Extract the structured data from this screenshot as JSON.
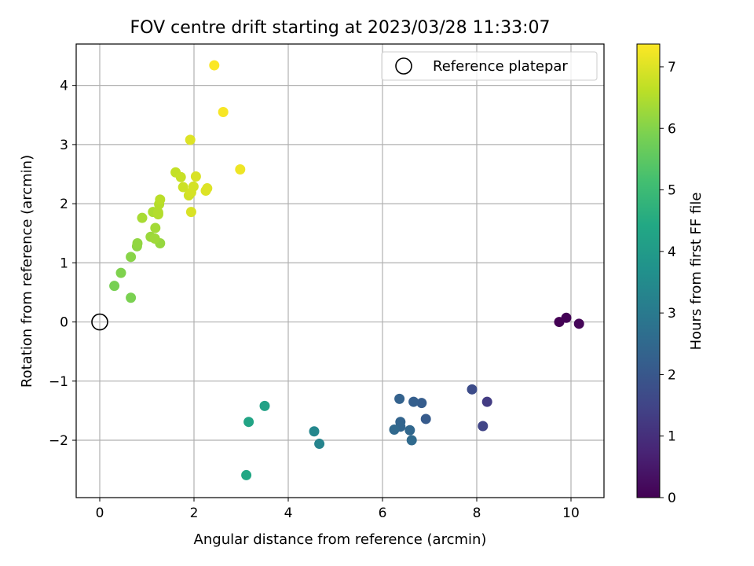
{
  "chart_data": {
    "type": "scatter",
    "title": "FOV centre drift starting at 2023/03/28 11:33:07",
    "xlabel": "Angular distance from reference (arcmin)",
    "ylabel": "Rotation from reference (arcmin)",
    "xlim": [
      -0.5,
      10.7
    ],
    "ylim": [
      -2.97,
      4.7
    ],
    "xticks": [
      0,
      2,
      4,
      6,
      8,
      10
    ],
    "xtick_labels": [
      "0",
      "2",
      "4",
      "6",
      "8",
      "10"
    ],
    "yticks": [
      -2,
      -1,
      0,
      1,
      2,
      3,
      4
    ],
    "ytick_labels": [
      "−2",
      "−1",
      "0",
      "1",
      "2",
      "3",
      "4"
    ],
    "grid": true,
    "legend": {
      "label": "Reference platepar",
      "placement": "top-right"
    },
    "reference_point": {
      "x": 0,
      "y": 0
    },
    "colorbar": {
      "label": "Hours from first FF file",
      "colormap": "viridis",
      "range": [
        0,
        7.37
      ],
      "ticks": [
        0,
        1,
        2,
        3,
        4,
        5,
        6,
        7
      ],
      "tick_labels": [
        "0",
        "1",
        "2",
        "3",
        "4",
        "5",
        "6",
        "7"
      ]
    },
    "points": [
      {
        "x": 9.75,
        "y": 0.0,
        "c": 0.0
      },
      {
        "x": 9.9,
        "y": 0.07,
        "c": 0.05
      },
      {
        "x": 10.17,
        "y": -0.03,
        "c": 0.1
      },
      {
        "x": 8.22,
        "y": -1.35,
        "c": 1.3
      },
      {
        "x": 8.13,
        "y": -1.76,
        "c": 1.5
      },
      {
        "x": 7.9,
        "y": -1.14,
        "c": 1.7
      },
      {
        "x": 6.92,
        "y": -1.64,
        "c": 2.1
      },
      {
        "x": 6.83,
        "y": -1.37,
        "c": 2.15
      },
      {
        "x": 6.66,
        "y": -1.35,
        "c": 2.2
      },
      {
        "x": 6.36,
        "y": -1.3,
        "c": 2.3
      },
      {
        "x": 6.38,
        "y": -1.69,
        "c": 2.35
      },
      {
        "x": 6.38,
        "y": -1.77,
        "c": 2.4
      },
      {
        "x": 6.58,
        "y": -1.83,
        "c": 2.45
      },
      {
        "x": 6.25,
        "y": -1.82,
        "c": 2.5
      },
      {
        "x": 6.62,
        "y": -2.0,
        "c": 2.55
      },
      {
        "x": 4.66,
        "y": -2.06,
        "c": 3.3
      },
      {
        "x": 4.55,
        "y": -1.85,
        "c": 3.4
      },
      {
        "x": 3.5,
        "y": -1.42,
        "c": 4.2
      },
      {
        "x": 3.16,
        "y": -1.69,
        "c": 4.3
      },
      {
        "x": 3.11,
        "y": -2.59,
        "c": 4.4
      },
      {
        "x": 0.66,
        "y": 0.41,
        "c": 5.9
      },
      {
        "x": 0.31,
        "y": 0.61,
        "c": 5.85
      },
      {
        "x": 0.45,
        "y": 0.83,
        "c": 5.95
      },
      {
        "x": 0.66,
        "y": 1.1,
        "c": 6.05
      },
      {
        "x": 0.79,
        "y": 1.28,
        "c": 6.1
      },
      {
        "x": 0.8,
        "y": 1.33,
        "c": 6.15
      },
      {
        "x": 1.28,
        "y": 1.33,
        "c": 6.2
      },
      {
        "x": 1.08,
        "y": 1.44,
        "c": 6.25
      },
      {
        "x": 1.17,
        "y": 1.41,
        "c": 6.3
      },
      {
        "x": 1.18,
        "y": 1.59,
        "c": 6.35
      },
      {
        "x": 0.9,
        "y": 1.76,
        "c": 6.4
      },
      {
        "x": 1.13,
        "y": 1.86,
        "c": 6.45
      },
      {
        "x": 1.24,
        "y": 1.82,
        "c": 6.5
      },
      {
        "x": 1.24,
        "y": 1.85,
        "c": 6.52
      },
      {
        "x": 1.26,
        "y": 1.99,
        "c": 6.55
      },
      {
        "x": 1.28,
        "y": 2.07,
        "c": 6.6
      },
      {
        "x": 1.61,
        "y": 2.53,
        "c": 6.7
      },
      {
        "x": 1.72,
        "y": 2.45,
        "c": 6.75
      },
      {
        "x": 1.77,
        "y": 2.28,
        "c": 6.8
      },
      {
        "x": 1.89,
        "y": 2.14,
        "c": 6.85
      },
      {
        "x": 1.94,
        "y": 2.19,
        "c": 6.9
      },
      {
        "x": 1.99,
        "y": 2.29,
        "c": 6.9
      },
      {
        "x": 2.04,
        "y": 2.46,
        "c": 6.95
      },
      {
        "x": 1.94,
        "y": 1.86,
        "c": 6.95
      },
      {
        "x": 2.25,
        "y": 2.22,
        "c": 7.0
      },
      {
        "x": 2.28,
        "y": 2.26,
        "c": 7.0
      },
      {
        "x": 1.92,
        "y": 3.08,
        "c": 7.0
      },
      {
        "x": 2.98,
        "y": 2.58,
        "c": 7.2
      },
      {
        "x": 2.62,
        "y": 3.55,
        "c": 7.3
      },
      {
        "x": 2.43,
        "y": 4.34,
        "c": 7.35
      }
    ]
  }
}
